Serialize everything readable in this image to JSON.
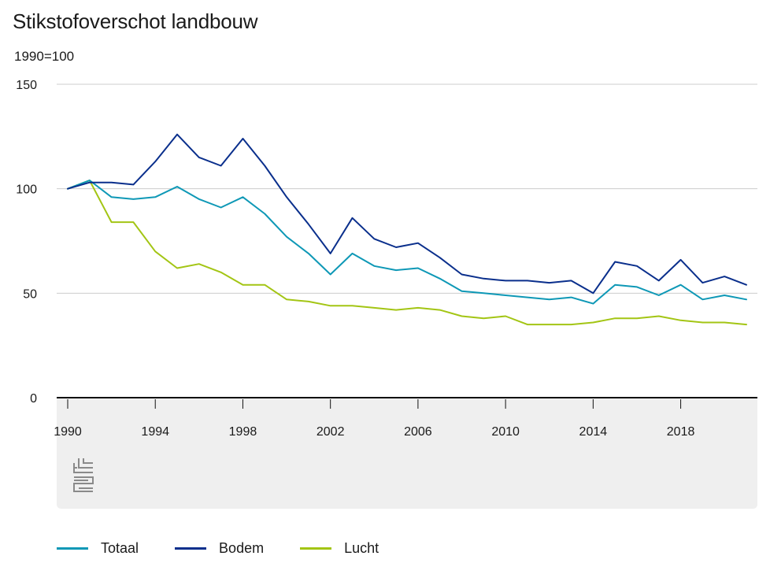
{
  "header": {
    "title": "Stikstofoverschot landbouw",
    "unit": "1990=100"
  },
  "colors": {
    "totaal": "#0e98b6",
    "bodem": "#0a2f8c",
    "lucht": "#a3c514",
    "grid": "#cccccc",
    "axis": "#111111",
    "footer_bg": "#efefef"
  },
  "logo": "cbs-logo-icon",
  "chart_data": {
    "type": "line",
    "title": "Stikstofoverschot landbouw",
    "ylabel": "1990=100",
    "xlabel": "",
    "ylim": [
      0,
      150
    ],
    "xlim": [
      1990,
      2021
    ],
    "yticks": [
      0,
      50,
      100,
      150
    ],
    "xticks": [
      1990,
      1994,
      1998,
      2002,
      2006,
      2010,
      2014,
      2018
    ],
    "grid": true,
    "legend_position": "bottom",
    "x": [
      1990,
      1991,
      1992,
      1993,
      1994,
      1995,
      1996,
      1997,
      1998,
      1999,
      2000,
      2001,
      2002,
      2003,
      2004,
      2005,
      2006,
      2007,
      2008,
      2009,
      2010,
      2011,
      2012,
      2013,
      2014,
      2015,
      2016,
      2017,
      2018,
      2019,
      2020,
      2021
    ],
    "series": [
      {
        "name": "Totaal",
        "key": "totaal",
        "values": [
          100,
          104,
          96,
          95,
          96,
          101,
          95,
          91,
          96,
          88,
          77,
          69,
          59,
          69,
          63,
          61,
          62,
          57,
          51,
          50,
          49,
          48,
          47,
          48,
          45,
          54,
          53,
          49,
          54,
          47,
          49,
          47
        ]
      },
      {
        "name": "Bodem",
        "key": "bodem",
        "values": [
          100,
          103,
          103,
          102,
          113,
          126,
          115,
          111,
          124,
          111,
          96,
          83,
          69,
          86,
          76,
          72,
          74,
          67,
          59,
          57,
          56,
          56,
          55,
          56,
          50,
          65,
          63,
          56,
          66,
          55,
          58,
          54
        ]
      },
      {
        "name": "Lucht",
        "key": "lucht",
        "values": [
          100,
          104,
          84,
          84,
          70,
          62,
          64,
          60,
          54,
          54,
          47,
          46,
          44,
          44,
          43,
          42,
          43,
          42,
          39,
          38,
          39,
          35,
          35,
          35,
          36,
          38,
          38,
          39,
          37,
          36,
          36,
          35
        ]
      }
    ]
  }
}
